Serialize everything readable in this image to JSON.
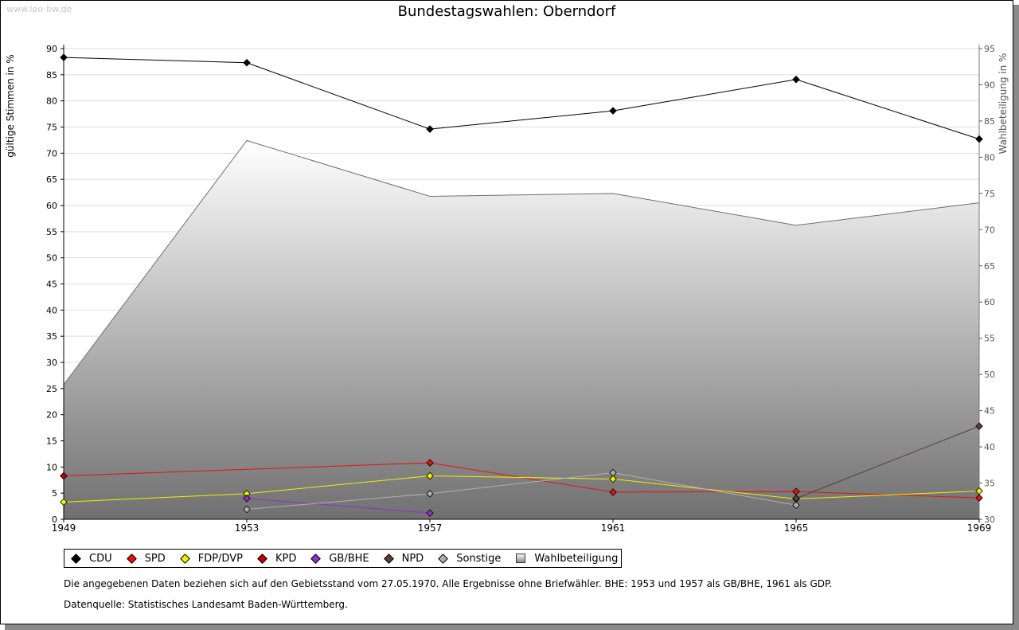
{
  "watermark": "www.leo-bw.de",
  "chart_data": {
    "type": "line",
    "title": "Bundestagswahlen: Oberndorf",
    "ylabel": "gültige Stimmen in %",
    "y2label": "Wahlbeteiligung in %",
    "x": [
      1949,
      1953,
      1957,
      1961,
      1965,
      1969
    ],
    "ylim": [
      0,
      90
    ],
    "y2lim": [
      30,
      95
    ],
    "yticks": [
      0,
      5,
      10,
      15,
      20,
      25,
      30,
      35,
      40,
      45,
      50,
      55,
      60,
      65,
      70,
      75,
      80,
      85,
      90
    ],
    "y2ticks": [
      30,
      35,
      40,
      45,
      50,
      55,
      60,
      65,
      70,
      75,
      80,
      85,
      90,
      95
    ],
    "series": [
      {
        "name": "CDU",
        "color": "#000000",
        "values": [
          88.3,
          87.3,
          74.6,
          78.1,
          84.1,
          72.7
        ]
      },
      {
        "name": "SPD",
        "color": "#e81010",
        "values": [
          8.3,
          null,
          10.8,
          5.2,
          5.3,
          4.1
        ]
      },
      {
        "name": "FDP/DVP",
        "color": "#f0f000",
        "values": [
          3.3,
          4.9,
          8.3,
          7.7,
          3.9,
          5.4
        ]
      },
      {
        "name": "KPD",
        "color": "#c00000",
        "values": [
          8.3,
          null,
          null,
          null,
          null,
          null
        ]
      },
      {
        "name": "GB/BHE",
        "color": "#9030c8",
        "values": [
          null,
          4.0,
          1.2,
          null,
          null,
          null
        ]
      },
      {
        "name": "NPD",
        "color": "#5c4030",
        "values": [
          null,
          null,
          null,
          null,
          4.0,
          17.8
        ]
      },
      {
        "name": "Sonstige",
        "color": "#b0b0b0",
        "values": [
          null,
          1.9,
          4.9,
          8.9,
          2.7,
          null
        ]
      }
    ],
    "turnout": {
      "name": "Wahlbeteiligung",
      "values": [
        48.6,
        82.3,
        74.6,
        75.0,
        70.6,
        73.7
      ]
    }
  },
  "notes": {
    "line1": "Die angegebenen Daten beziehen sich auf den Gebietsstand vom 27.05.1970. Alle Ergebnisse ohne Briefwähler. BHE: 1953 und 1957 als GB/BHE, 1961 als GDP.",
    "line2": "Datenquelle: Statistisches Landesamt Baden-Württemberg."
  }
}
